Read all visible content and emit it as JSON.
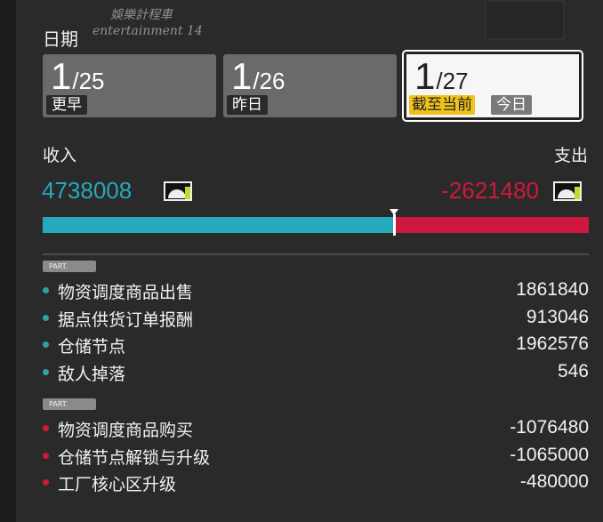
{
  "watermark": {
    "line1": "娛樂計程車",
    "line2": "entertainment 14"
  },
  "date_label": "日期",
  "tabs": [
    {
      "month": "1",
      "day": "/25",
      "tag": "更早",
      "selected": false
    },
    {
      "month": "1",
      "day": "/26",
      "tag": "昨日",
      "selected": false
    },
    {
      "month": "1",
      "day": "/27",
      "tag": "截至当前",
      "tag2": "今日",
      "selected": true
    }
  ],
  "summary": {
    "income_label": "收入",
    "expense_label": "支出",
    "income": "4738008",
    "expense": "-2621480",
    "income_color": "#26a9b8",
    "expense_color": "#d0183f",
    "income_share_percent": 64.4
  },
  "income_section": {
    "badge": "PART.",
    "items": [
      {
        "name": "物资调度商品出售",
        "value": "1861840"
      },
      {
        "name": "据点供货订单报酬",
        "value": "913046"
      },
      {
        "name": "仓储节点",
        "value": "1962576"
      },
      {
        "name": "敌人掉落",
        "value": "546"
      }
    ]
  },
  "expense_section": {
    "badge": "PART.",
    "items": [
      {
        "name": "物资调度商品购买",
        "value": "-1076480"
      },
      {
        "name": "仓储节点解锁与升级",
        "value": "-1065000"
      },
      {
        "name": "工厂核心区升级",
        "value": "-480000"
      }
    ]
  }
}
